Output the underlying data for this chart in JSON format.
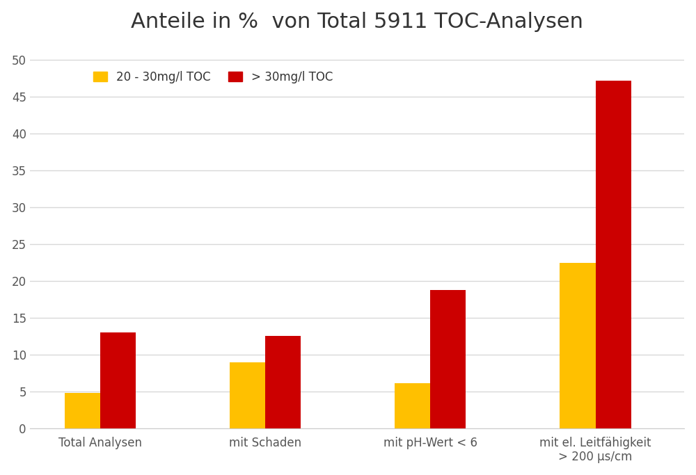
{
  "title": "Anteile in %  von Total 5911 TOC-Analysen",
  "categories": [
    "Total Analysen",
    "mit Schaden",
    "mit pH-Wert < 6",
    "mit el. Leitfähigkeit\n> 200 µs/cm"
  ],
  "series": [
    {
      "label": "20 - 30mg/l TOC",
      "color": "#FFC000",
      "values": [
        4.8,
        9.0,
        6.2,
        22.5
      ]
    },
    {
      "label": "> 30mg/l TOC",
      "color": "#CC0000",
      "values": [
        13.0,
        12.6,
        18.8,
        47.2
      ]
    }
  ],
  "ylim": [
    0,
    52
  ],
  "yticks": [
    0,
    5,
    10,
    15,
    20,
    25,
    30,
    35,
    40,
    45,
    50
  ],
  "bar_width": 0.28,
  "group_positions": [
    0.5,
    1.8,
    3.1,
    4.4
  ],
  "background_color": "#ffffff",
  "grid_color": "#d8d8d8",
  "title_fontsize": 22,
  "tick_fontsize": 12,
  "legend_fontsize": 12,
  "xlim": [
    -0.05,
    5.1
  ]
}
